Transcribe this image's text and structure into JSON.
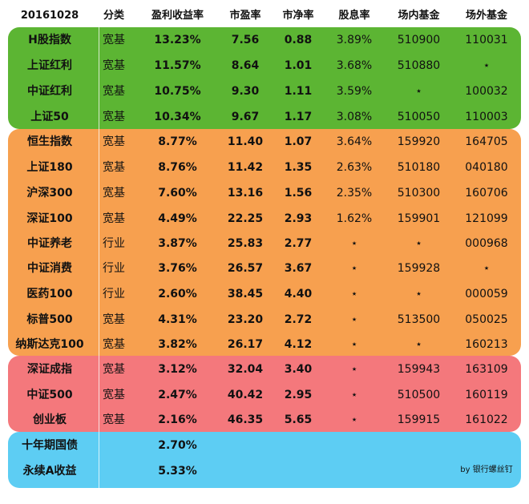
{
  "header": [
    "20161028",
    "分类",
    "盈利收益率",
    "市盈率",
    "市净率",
    "股息率",
    "场内基金",
    "场外基金"
  ],
  "rows": [
    [
      "H股指数",
      "宽基",
      "13.23%",
      "7.56",
      "0.88",
      "3.89%",
      "510900",
      "110031"
    ],
    [
      "上证红利",
      "宽基",
      "11.57%",
      "8.64",
      "1.01",
      "3.68%",
      "510880",
      "⋆"
    ],
    [
      "中证红利",
      "宽基",
      "10.75%",
      "9.30",
      "1.11",
      "3.59%",
      "⋆",
      "100032"
    ],
    [
      "上证50",
      "宽基",
      "10.34%",
      "9.67",
      "1.17",
      "3.08%",
      "510050",
      "110003"
    ],
    [
      "恒生指数",
      "宽基",
      "8.77%",
      "11.40",
      "1.07",
      "3.64%",
      "159920",
      "164705"
    ],
    [
      "上证180",
      "宽基",
      "8.76%",
      "11.42",
      "1.35",
      "2.63%",
      "510180",
      "040180"
    ],
    [
      "沪深300",
      "宽基",
      "7.60%",
      "13.16",
      "1.56",
      "2.35%",
      "510300",
      "160706"
    ],
    [
      "深证100",
      "宽基",
      "4.49%",
      "22.25",
      "2.93",
      "1.62%",
      "159901",
      "121099"
    ],
    [
      "中证养老",
      "行业",
      "3.87%",
      "25.83",
      "2.77",
      "⋆",
      "⋆",
      "000968"
    ],
    [
      "中证消费",
      "行业",
      "3.76%",
      "26.57",
      "3.67",
      "⋆",
      "159928",
      "⋆"
    ],
    [
      "医药100",
      "行业",
      "2.60%",
      "38.45",
      "4.40",
      "⋆",
      "⋆",
      "000059"
    ],
    [
      "标普500",
      "宽基",
      "4.31%",
      "23.20",
      "2.72",
      "⋆",
      "513500",
      "050025"
    ],
    [
      "纳斯达克100",
      "宽基",
      "3.82%",
      "26.17",
      "4.12",
      "⋆",
      "⋆",
      "160213"
    ],
    [
      "深证成指",
      "宽基",
      "3.12%",
      "32.04",
      "3.40",
      "⋆",
      "159943",
      "163109"
    ],
    [
      "中证500",
      "宽基",
      "2.47%",
      "40.42",
      "2.95",
      "⋆",
      "510500",
      "160119"
    ],
    [
      "创业板",
      "宽基",
      "2.16%",
      "46.35",
      "5.65",
      "⋆",
      "159915",
      "161022"
    ]
  ],
  "bonds": [
    [
      "十年期国债",
      "2.70%"
    ],
    [
      "永续A收益",
      "5.33%"
    ]
  ],
  "credit": "by 银行螺丝钉",
  "colors": {
    "green": "#5cb533",
    "orange": "#f7a04f",
    "red": "#f4787c",
    "blue": "#5dcdf3"
  }
}
